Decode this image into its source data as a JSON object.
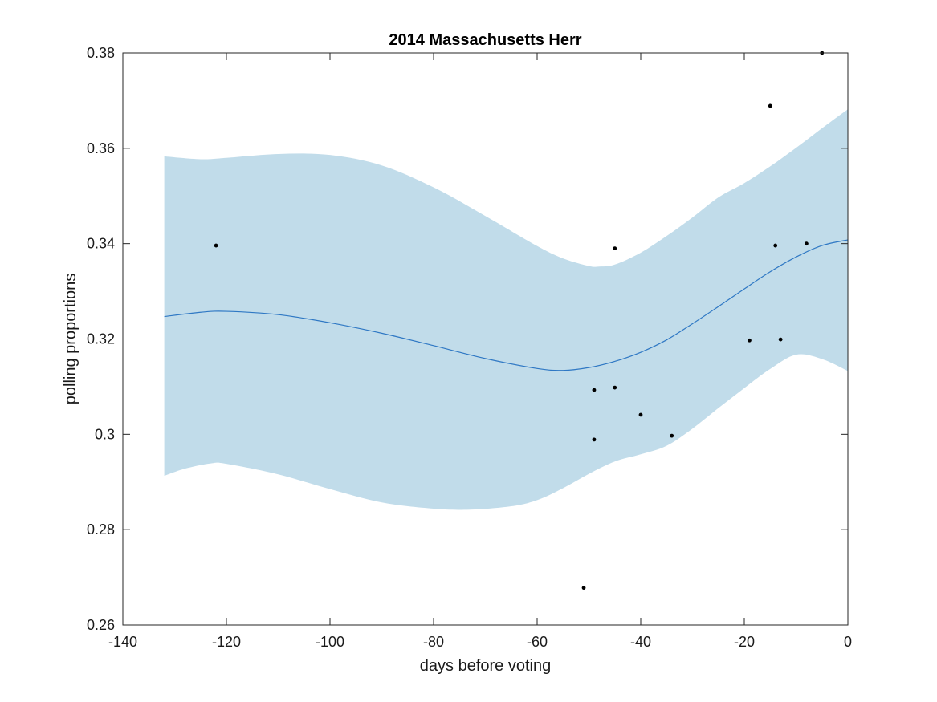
{
  "chart_data": {
    "type": "scatter",
    "title": "2014 Massachusetts Herr",
    "xlabel": "days before voting",
    "ylabel": "polling proportions",
    "xlim": [
      -140,
      0
    ],
    "ylim": [
      0.26,
      0.38
    ],
    "xticks": [
      -140,
      -120,
      -100,
      -80,
      -60,
      -40,
      -20,
      0
    ],
    "xtick_labels": [
      "-140",
      "-120",
      "-100",
      "-80",
      "-60",
      "-40",
      "-20",
      "0"
    ],
    "yticks": [
      0.26,
      0.28,
      0.3,
      0.32,
      0.34,
      0.36,
      0.38
    ],
    "ytick_labels": [
      "0.26",
      "0.28",
      "0.3",
      "0.32",
      "0.34",
      "0.36",
      "0.38"
    ],
    "grid": false,
    "colors": {
      "band": "#c1dcea",
      "trend": "#2f78c4",
      "points": "#000000",
      "axes": "#262626"
    },
    "points": [
      {
        "x": -122,
        "y": 0.3396
      },
      {
        "x": -51,
        "y": 0.2678
      },
      {
        "x": -49,
        "y": 0.3093
      },
      {
        "x": -49,
        "y": 0.2989
      },
      {
        "x": -45,
        "y": 0.339
      },
      {
        "x": -45,
        "y": 0.3098
      },
      {
        "x": -40,
        "y": 0.3041
      },
      {
        "x": -34,
        "y": 0.2997
      },
      {
        "x": -19,
        "y": 0.3197
      },
      {
        "x": -15,
        "y": 0.3689
      },
      {
        "x": -14,
        "y": 0.3396
      },
      {
        "x": -13,
        "y": 0.3199
      },
      {
        "x": -8,
        "y": 0.34
      },
      {
        "x": -5,
        "y": 0.38
      }
    ],
    "trend": [
      {
        "x": -132,
        "y": 0.3247
      },
      {
        "x": -125,
        "y": 0.3256
      },
      {
        "x": -120,
        "y": 0.3258
      },
      {
        "x": -110,
        "y": 0.3251
      },
      {
        "x": -100,
        "y": 0.3234
      },
      {
        "x": -90,
        "y": 0.3212
      },
      {
        "x": -80,
        "y": 0.3186
      },
      {
        "x": -70,
        "y": 0.3159
      },
      {
        "x": -60,
        "y": 0.3138
      },
      {
        "x": -55,
        "y": 0.3134
      },
      {
        "x": -50,
        "y": 0.314
      },
      {
        "x": -45,
        "y": 0.3153
      },
      {
        "x": -40,
        "y": 0.3172
      },
      {
        "x": -35,
        "y": 0.3198
      },
      {
        "x": -30,
        "y": 0.3232
      },
      {
        "x": -25,
        "y": 0.3268
      },
      {
        "x": -20,
        "y": 0.3305
      },
      {
        "x": -15,
        "y": 0.3341
      },
      {
        "x": -10,
        "y": 0.3372
      },
      {
        "x": -5,
        "y": 0.3396
      },
      {
        "x": 0,
        "y": 0.3408
      }
    ],
    "band_upper": [
      {
        "x": -132,
        "y": 0.3583
      },
      {
        "x": -125,
        "y": 0.3577
      },
      {
        "x": -120,
        "y": 0.358
      },
      {
        "x": -110,
        "y": 0.3588
      },
      {
        "x": -100,
        "y": 0.3586
      },
      {
        "x": -90,
        "y": 0.3564
      },
      {
        "x": -80,
        "y": 0.3518
      },
      {
        "x": -70,
        "y": 0.3458
      },
      {
        "x": -60,
        "y": 0.3395
      },
      {
        "x": -55,
        "y": 0.3369
      },
      {
        "x": -50,
        "y": 0.3353
      },
      {
        "x": -48,
        "y": 0.3352
      },
      {
        "x": -45,
        "y": 0.3356
      },
      {
        "x": -40,
        "y": 0.3381
      },
      {
        "x": -35,
        "y": 0.3416
      },
      {
        "x": -30,
        "y": 0.3455
      },
      {
        "x": -25,
        "y": 0.3497
      },
      {
        "x": -20,
        "y": 0.3527
      },
      {
        "x": -15,
        "y": 0.3562
      },
      {
        "x": -10,
        "y": 0.3601
      },
      {
        "x": -5,
        "y": 0.3642
      },
      {
        "x": 0,
        "y": 0.3682
      }
    ],
    "band_lower": [
      {
        "x": -132,
        "y": 0.2913
      },
      {
        "x": -128,
        "y": 0.2928
      },
      {
        "x": -123,
        "y": 0.2939
      },
      {
        "x": -120,
        "y": 0.2938
      },
      {
        "x": -110,
        "y": 0.2916
      },
      {
        "x": -100,
        "y": 0.2885
      },
      {
        "x": -90,
        "y": 0.2857
      },
      {
        "x": -80,
        "y": 0.2844
      },
      {
        "x": -73,
        "y": 0.2842
      },
      {
        "x": -65,
        "y": 0.2849
      },
      {
        "x": -60,
        "y": 0.2862
      },
      {
        "x": -55,
        "y": 0.2887
      },
      {
        "x": -50,
        "y": 0.2917
      },
      {
        "x": -45,
        "y": 0.2943
      },
      {
        "x": -40,
        "y": 0.2958
      },
      {
        "x": -35,
        "y": 0.2976
      },
      {
        "x": -30,
        "y": 0.3012
      },
      {
        "x": -25,
        "y": 0.3055
      },
      {
        "x": -20,
        "y": 0.3097
      },
      {
        "x": -15,
        "y": 0.3137
      },
      {
        "x": -10,
        "y": 0.3167
      },
      {
        "x": -5,
        "y": 0.3158
      },
      {
        "x": 0,
        "y": 0.3133
      }
    ]
  }
}
